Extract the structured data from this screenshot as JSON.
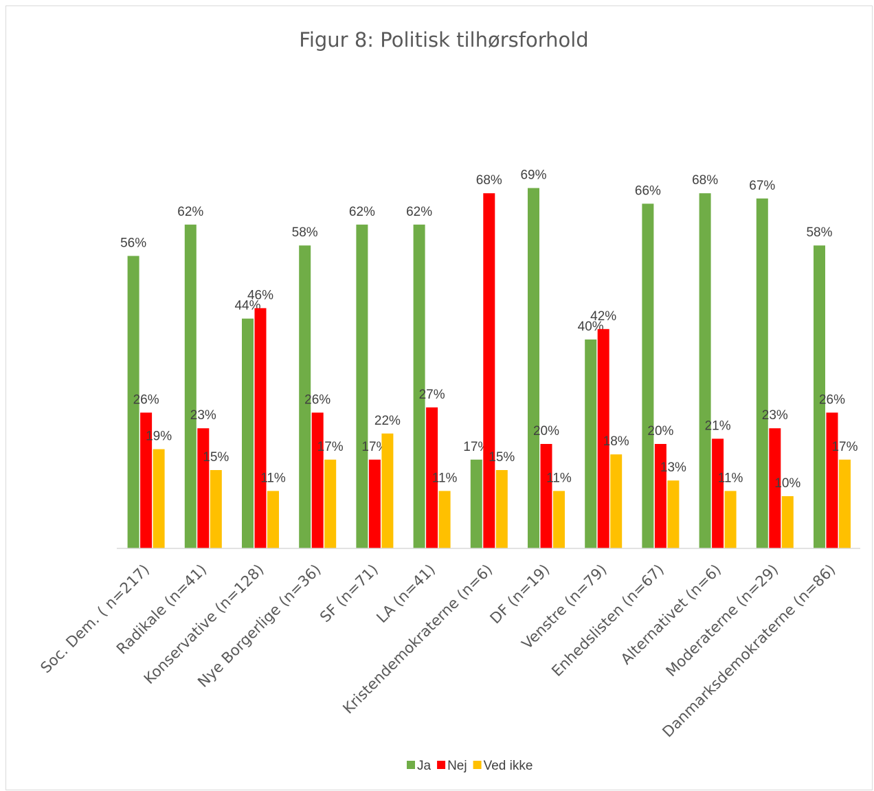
{
  "chart_data": {
    "type": "bar",
    "title": "Figur 8: Politisk tilhørsforhold",
    "xlabel": "",
    "ylabel": "",
    "ylim": [
      0,
      0.7
    ],
    "grid": false,
    "legend_position": "bottom",
    "categories": [
      "Soc. Dem. ( n=217)",
      "Radikale (n=41)",
      "Konservative (n=128)",
      "Nye Borgerlige (n=36)",
      "SF (n=71)",
      "LA (n=41)",
      "Kristendemokraterne (n=6)",
      "DF (n=19)",
      "Venstre (n=79)",
      "Enhedslisten (n=67)",
      "Alternativet (n=6)",
      "Moderaterne (n=29)",
      "Danmarksdemokraterne (n=86)"
    ],
    "series": [
      {
        "name": "Ja",
        "color": "#70ad47",
        "values": [
          0.56,
          0.62,
          0.44,
          0.58,
          0.62,
          0.62,
          0.17,
          0.69,
          0.4,
          0.66,
          0.68,
          0.67,
          0.58
        ],
        "labels": [
          "56%",
          "62%",
          "44%",
          "58%",
          "62%",
          "62%",
          "17%",
          "69%",
          "40%",
          "66%",
          "68%",
          "67%",
          "58%"
        ]
      },
      {
        "name": "Nej",
        "color": "#ff0000",
        "values": [
          0.26,
          0.23,
          0.46,
          0.26,
          0.17,
          0.27,
          0.68,
          0.2,
          0.42,
          0.2,
          0.21,
          0.23,
          0.26
        ],
        "labels": [
          "26%",
          "23%",
          "46%",
          "26%",
          "17%",
          "27%",
          "68%",
          "20%",
          "42%",
          "20%",
          "21%",
          "23%",
          "26%"
        ]
      },
      {
        "name": "Ved ikke",
        "color": "#ffc000",
        "values": [
          0.19,
          0.15,
          0.11,
          0.17,
          0.22,
          0.11,
          0.15,
          0.11,
          0.18,
          0.13,
          0.11,
          0.1,
          0.17
        ],
        "labels": [
          "19%",
          "15%",
          "11%",
          "17%",
          "22%",
          "11%",
          "15%",
          "11%",
          "18%",
          "13%",
          "11%",
          "10%",
          "17%"
        ]
      }
    ]
  }
}
